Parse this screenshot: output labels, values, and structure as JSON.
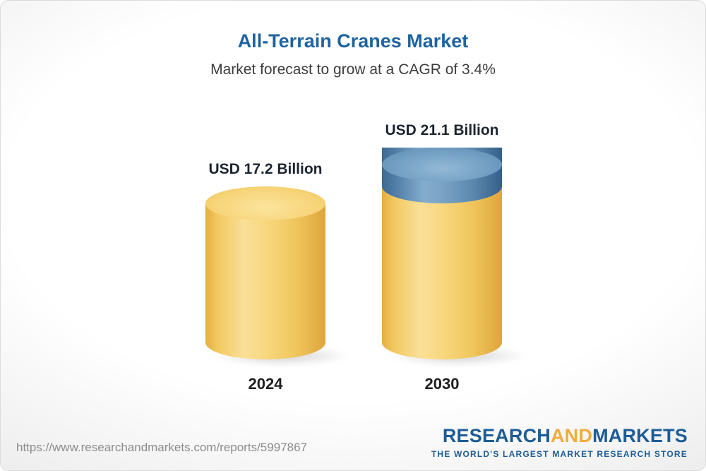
{
  "chart_data": {
    "type": "bar",
    "subtype": "3d-cylinder",
    "title": "All-Terrain Cranes Market",
    "subtitle": "Market forecast to grow at a CAGR of 3.4%",
    "categories": [
      "2024",
      "2030"
    ],
    "values": [
      17.2,
      21.1
    ],
    "unit": "USD Billion",
    "value_labels": [
      "USD 17.2 Billion",
      "USD 21.1 Billion"
    ],
    "cagr": "3.4%",
    "ylim": [
      0,
      21.1
    ],
    "legend": "none",
    "grid": "off",
    "bar_color": "#f2c95f",
    "increment_color": "#6d9bc0"
  },
  "footer": {
    "url": "https://www.researchandmarkets.com/reports/5997867",
    "logo": {
      "research": "RESEARCH",
      "and": "AND",
      "markets": "MARKETS",
      "tagline": "THE WORLD'S LARGEST MARKET RESEARCH STORE"
    }
  }
}
